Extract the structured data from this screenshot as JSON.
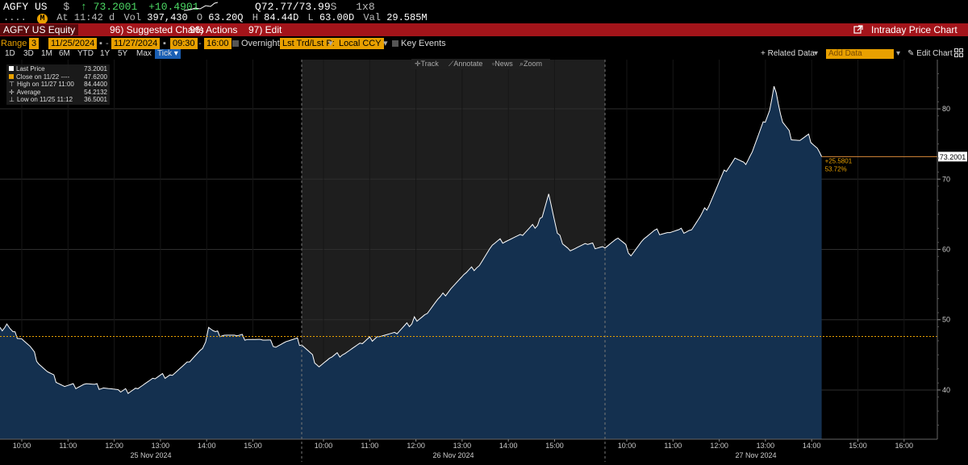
{
  "quote": {
    "ticker": "AGFY US",
    "currency_symbol": "$",
    "arrow": "↑",
    "last": "73.2001",
    "change": "+10.4901",
    "bid_ask": "Q72.77/73.99",
    "bid_ask_suffix": "S",
    "size": "1x8",
    "dots": "....",
    "badge": "M",
    "at_label": "At",
    "time": "11:42",
    "time_suffix": "d",
    "vol_label": "Vol",
    "vol": "397,430",
    "open_label": "O",
    "open": "63.20Q",
    "high_label": "H",
    "high": "84.44D",
    "low_label": "L",
    "low": "63.00D",
    "val_label": "Val",
    "val": "29.585M"
  },
  "toolbar": {
    "security": "AGFY US Equity",
    "suggested_charts": "96) Suggested Charts",
    "actions": "96) Actions",
    "edit": "97) Edit",
    "title": "Intraday Price Chart"
  },
  "settings": {
    "range_label": "Range",
    "range_value": "3",
    "start_date": "11/25/2024",
    "end_date": "11/27/2024",
    "start_time": "09:30",
    "end_time": "16:00",
    "overnight": "Overnight",
    "market": "Lst Trd/Lst P:",
    "currency": "Local CCY",
    "key_events": "Key Events"
  },
  "periods": {
    "items": [
      "1D",
      "3D",
      "1M",
      "6M",
      "YTD",
      "1Y",
      "5Y",
      "Max",
      "Tick"
    ],
    "selected": "Tick",
    "related": "+ Related Data",
    "add_data": "Add Data",
    "edit_chart": "Edit Chart"
  },
  "tools": {
    "track": "Track",
    "annotate": "Annotate",
    "news": "News",
    "zoom": "Zoom"
  },
  "legend": {
    "rows": [
      {
        "label": "Last Price",
        "value": "73.2001",
        "color": "#ffffff"
      },
      {
        "label": "Close on 11/22 ----",
        "value": "47.6200",
        "color": "#e8a000"
      },
      {
        "label": "High on 11/27 11:00",
        "value": "84.4400",
        "color": ""
      },
      {
        "label": "Average",
        "value": "54.2132",
        "color": ""
      },
      {
        "label": "Low on 11/25 11:12",
        "value": "36.5001",
        "color": ""
      }
    ]
  },
  "chart_data": {
    "type": "area",
    "title": "",
    "xlabel": "",
    "ylabel": "",
    "ylim": [
      33,
      87
    ],
    "y_ticks": [
      40,
      50,
      60,
      70,
      80
    ],
    "days": [
      {
        "date": "25 Nov 2024",
        "x_ticks": [
          "10:00",
          "11:00",
          "12:00",
          "13:00",
          "14:00",
          "15:00"
        ]
      },
      {
        "date": "26 Nov 2024",
        "x_ticks": [
          "10:00",
          "11:00",
          "12:00",
          "13:00",
          "14:00",
          "15:00"
        ]
      },
      {
        "date": "27 Nov 2024",
        "x_ticks": [
          "10:00",
          "11:00",
          "12:00",
          "13:00",
          "14:00",
          "15:00",
          "16:00"
        ]
      }
    ],
    "series": [
      {
        "values": [
          [
            0,
            48.5
          ],
          [
            0.08,
            49.5
          ],
          [
            0.15,
            48
          ],
          [
            0.25,
            47.5
          ],
          [
            0.35,
            46
          ],
          [
            0.45,
            44
          ],
          [
            0.55,
            42.5
          ],
          [
            0.65,
            41.5
          ],
          [
            0.75,
            40.5
          ],
          [
            0.85,
            40.5
          ],
          [
            1.0,
            41
          ],
          [
            1.1,
            40.5
          ],
          [
            1.2,
            40.5
          ],
          [
            1.4,
            39.5
          ],
          [
            1.6,
            40.5
          ],
          [
            1.8,
            41.5
          ],
          [
            2.0,
            42.5
          ],
          [
            2.2,
            44
          ],
          [
            2.35,
            45.5
          ],
          [
            2.42,
            49
          ],
          [
            2.5,
            48
          ],
          [
            2.6,
            48
          ],
          [
            2.75,
            47.5
          ],
          [
            2.9,
            47.5
          ],
          [
            3.05,
            47
          ],
          [
            3.2,
            46.5
          ],
          [
            3.35,
            47
          ],
          [
            3.45,
            47
          ],
          [
            3.5,
            46.5
          ],
          [
            3.6,
            45
          ],
          [
            3.7,
            43.5
          ],
          [
            3.85,
            44.5
          ],
          [
            4.0,
            45.5
          ],
          [
            4.2,
            46.5
          ],
          [
            4.4,
            48
          ],
          [
            4.6,
            48
          ],
          [
            4.8,
            50
          ],
          [
            4.95,
            51
          ],
          [
            5.1,
            53
          ],
          [
            5.25,
            55
          ],
          [
            5.4,
            56.5
          ],
          [
            5.55,
            58
          ],
          [
            5.7,
            60.5
          ],
          [
            5.85,
            61.5
          ],
          [
            6.05,
            62
          ],
          [
            6.25,
            64
          ],
          [
            6.35,
            68
          ],
          [
            6.45,
            62
          ],
          [
            6.6,
            60
          ],
          [
            6.8,
            60.5
          ],
          [
            7.0,
            60.5
          ],
          [
            7.15,
            61.5
          ],
          [
            7.3,
            59.5
          ],
          [
            7.45,
            61.5
          ],
          [
            7.6,
            62.5
          ],
          [
            7.75,
            62.5
          ],
          [
            7.85,
            62.5
          ],
          [
            8.0,
            63
          ],
          [
            8.1,
            64.5
          ],
          [
            8.2,
            66.5
          ],
          [
            8.3,
            69
          ],
          [
            8.4,
            71.5
          ],
          [
            8.5,
            73
          ],
          [
            8.6,
            72
          ],
          [
            8.7,
            74
          ],
          [
            8.8,
            77
          ],
          [
            8.9,
            80
          ],
          [
            8.95,
            83
          ],
          [
            9.0,
            81
          ],
          [
            9.05,
            78
          ],
          [
            9.15,
            76
          ],
          [
            9.25,
            75.5
          ],
          [
            9.35,
            76
          ],
          [
            9.45,
            74.5
          ],
          [
            9.5,
            73.2
          ]
        ]
      }
    ],
    "previous_close": 47.62,
    "last_price_label": "73.2001",
    "change_annotation": "+25.5801",
    "change_pct_annotation": "53.72%",
    "colors": {
      "line": "#ffffff",
      "fill": "#14304f",
      "prev_close": "#e8a000",
      "session2_bg": "#1e1e1e",
      "grid": "#2e2e2e",
      "axis_text": "#cccccc"
    }
  }
}
